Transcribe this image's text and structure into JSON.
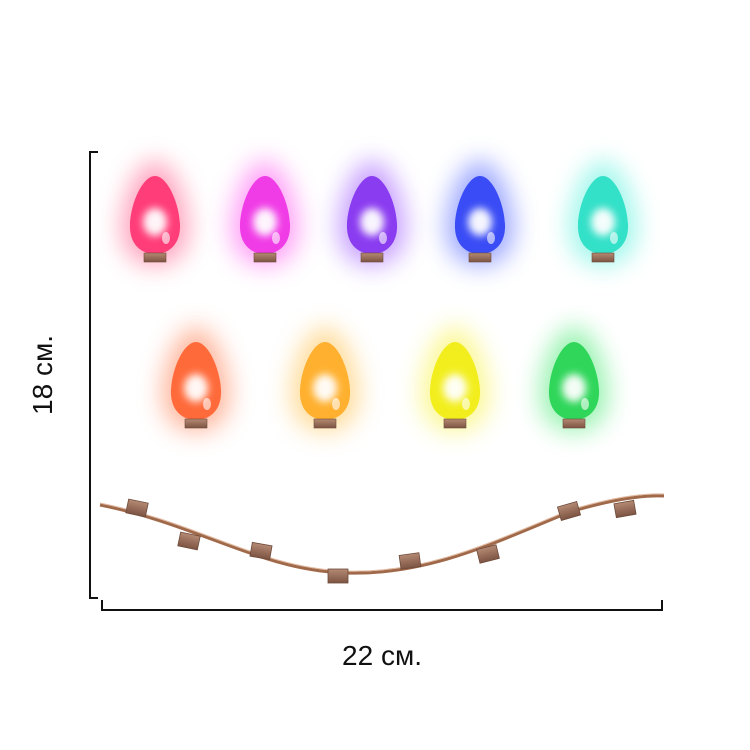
{
  "dimensions": {
    "height_label": "18 см.",
    "width_label": "22 см."
  },
  "sticker": {
    "bulbs": [
      {
        "name": "bulb-red",
        "color": "#ff3d78",
        "glow": "#ff5c8a"
      },
      {
        "name": "bulb-magenta",
        "color": "#f03ce6",
        "glow": "#ff55f0"
      },
      {
        "name": "bulb-purple",
        "color": "#8a3cf0",
        "glow": "#9b55ff"
      },
      {
        "name": "bulb-blue",
        "color": "#3a4cf5",
        "glow": "#4f63ff"
      },
      {
        "name": "bulb-cyan",
        "color": "#33e0c8",
        "glow": "#55f0dc"
      },
      {
        "name": "bulb-orange",
        "color": "#ff6a3a",
        "glow": "#ff7d4f"
      },
      {
        "name": "bulb-amber",
        "color": "#ffb02e",
        "glow": "#ffc04a"
      },
      {
        "name": "bulb-yellow",
        "color": "#f2ee1e",
        "glow": "#f8f23c"
      },
      {
        "name": "bulb-green",
        "color": "#2fd65a",
        "glow": "#45e870"
      }
    ],
    "wire_color": "#a0694a",
    "clip_color": "#9a6e5a"
  }
}
